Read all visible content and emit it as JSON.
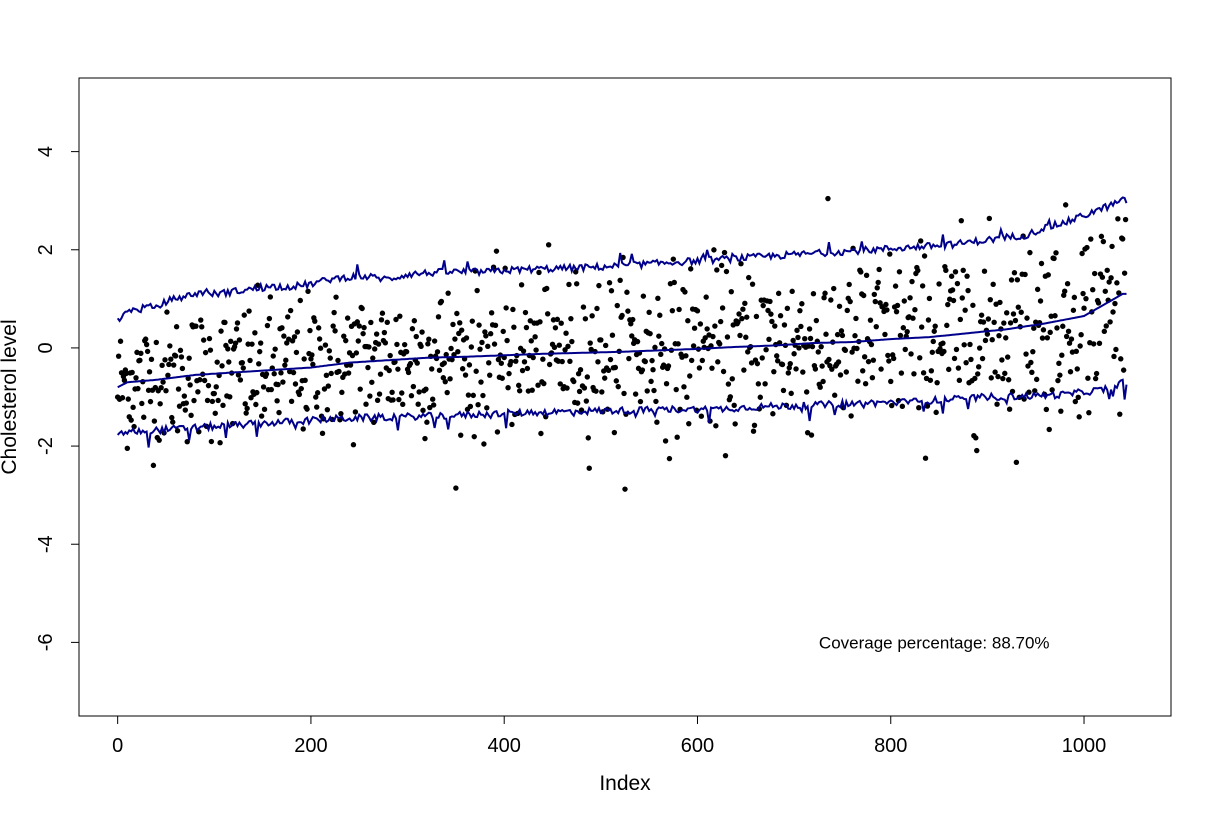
{
  "chart_data": {
    "type": "scatter",
    "title": "",
    "xlabel": "Index",
    "ylabel": "Cholesterol level",
    "xlim": [
      -40,
      1090
    ],
    "ylim": [
      -7.5,
      5.5
    ],
    "x_ticks": [
      0,
      200,
      400,
      600,
      800,
      1000
    ],
    "y_ticks": [
      -6,
      -4,
      -2,
      0,
      2,
      4
    ],
    "grid": false,
    "legend": "none",
    "annotation": {
      "text": "Coverage percentage: 88.70%",
      "x": 845,
      "y": -6
    },
    "n_points": 1044,
    "point_color": "#000000",
    "band_color": "#00008b",
    "series": [
      {
        "type": "line",
        "x": [
          0,
          5,
          10,
          20,
          30,
          40,
          50,
          60,
          70,
          80,
          90,
          100,
          120,
          140,
          160,
          180,
          200,
          220,
          240,
          260,
          280,
          300,
          340,
          380,
          420,
          460,
          500,
          540,
          580,
          620,
          660,
          700,
          740,
          780,
          820,
          860,
          900,
          940,
          960,
          980,
          1000,
          1020,
          1040
        ],
        "values": [
          0.62,
          0.62,
          0.8,
          0.75,
          0.85,
          0.8,
          0.95,
          1.0,
          1.05,
          1.1,
          1.15,
          1.1,
          1.15,
          1.2,
          1.25,
          1.25,
          1.3,
          1.4,
          1.45,
          1.45,
          1.4,
          1.5,
          1.55,
          1.55,
          1.6,
          1.62,
          1.65,
          1.7,
          1.75,
          1.8,
          1.85,
          1.9,
          1.95,
          2.0,
          2.05,
          2.1,
          2.2,
          2.3,
          2.45,
          2.55,
          2.7,
          2.85,
          3.0
        ]
      },
      {
        "type": "line",
        "x": [
          0,
          10,
          40,
          80,
          120,
          160,
          200,
          240,
          280,
          320,
          360,
          400,
          440,
          480,
          520,
          560,
          600,
          640,
          680,
          720,
          760,
          800,
          840,
          880,
          920,
          960,
          1000,
          1040
        ],
        "values": [
          -0.8,
          -0.7,
          -0.65,
          -0.55,
          -0.5,
          -0.45,
          -0.4,
          -0.3,
          -0.25,
          -0.2,
          -0.18,
          -0.15,
          -0.12,
          -0.1,
          -0.08,
          -0.05,
          -0.02,
          0.02,
          0.05,
          0.1,
          0.12,
          0.18,
          0.22,
          0.3,
          0.38,
          0.5,
          0.65,
          1.1
        ]
      },
      {
        "type": "line",
        "x": [
          0,
          20,
          60,
          100,
          140,
          180,
          220,
          260,
          300,
          340,
          380,
          420,
          460,
          500,
          540,
          580,
          620,
          660,
          700,
          740,
          780,
          820,
          860,
          900,
          940,
          980,
          1020,
          1040
        ],
        "values": [
          -1.75,
          -1.7,
          -1.65,
          -1.6,
          -1.55,
          -1.5,
          -1.45,
          -1.42,
          -1.4,
          -1.38,
          -1.35,
          -1.32,
          -1.3,
          -1.28,
          -1.27,
          -1.25,
          -1.25,
          -1.2,
          -1.18,
          -1.15,
          -1.12,
          -1.1,
          -1.05,
          -1.0,
          -0.98,
          -0.95,
          -0.85,
          -0.7
        ]
      }
    ]
  }
}
